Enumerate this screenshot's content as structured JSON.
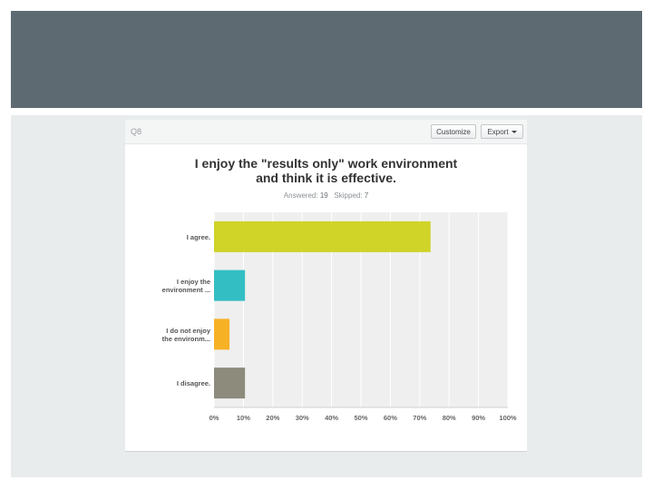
{
  "panel": {
    "question_number": "Q8",
    "buttons": {
      "customize": "Customize",
      "export": "Export"
    },
    "title_lines": [
      "I enjoy the \"results only\" work environment",
      "and think it is effective."
    ],
    "answered_label": "Answered:",
    "answered_value": "19",
    "skipped_label": "Skipped:",
    "skipped_value": "7"
  },
  "chart_data": {
    "type": "bar",
    "orientation": "horizontal",
    "categories": [
      [
        "I agree."
      ],
      [
        "I enjoy the",
        "environment ..."
      ],
      [
        "I do not enjoy",
        "the environm..."
      ],
      [
        "I disagree."
      ]
    ],
    "values": [
      73.68,
      10.53,
      5.26,
      10.53
    ],
    "colors": [
      "#d0d328",
      "#33bec4",
      "#f7b125",
      "#8c8b7c"
    ],
    "xlim": [
      0,
      100
    ],
    "xticks": [
      "0%",
      "10%",
      "20%",
      "30%",
      "40%",
      "50%",
      "60%",
      "70%",
      "80%",
      "90%",
      "100%"
    ],
    "grid": true
  }
}
